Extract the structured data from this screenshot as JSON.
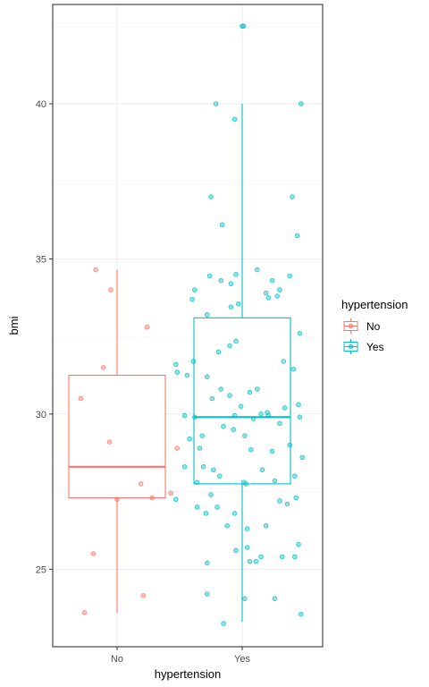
{
  "chart_data": {
    "type": "boxplot",
    "xlabel": "hypertension",
    "ylabel": "bmi",
    "categories": [
      "No",
      "Yes"
    ],
    "ylim": [
      22.5,
      43.2
    ],
    "yticks": [
      25,
      30,
      35,
      40
    ],
    "grid": true,
    "legend": {
      "title": "hypertension",
      "position": "right",
      "entries": [
        "No",
        "Yes"
      ]
    },
    "colors": {
      "No": "#F8766D",
      "Yes": "#00BFC4"
    },
    "series": [
      {
        "name": "No",
        "box": {
          "min": 23.6,
          "q1": 27.3,
          "median": 28.3,
          "q3": 31.25,
          "max": 34.65
        },
        "points": [
          [
            0.83,
            34.65
          ],
          [
            0.95,
            34.0
          ],
          [
            0.89,
            31.5
          ],
          [
            0.71,
            30.5
          ],
          [
            0.94,
            29.1
          ],
          [
            0.81,
            25.5
          ],
          [
            0.74,
            23.6
          ],
          [
            1.24,
            32.8
          ],
          [
            1.48,
            28.9
          ],
          [
            1.19,
            27.75
          ],
          [
            1.28,
            27.3
          ],
          [
            1.43,
            27.45
          ],
          [
            1.0,
            27.25
          ],
          [
            1.21,
            24.15
          ]
        ]
      },
      {
        "name": "Yes",
        "box": {
          "min": 23.3,
          "q1": 27.75,
          "median": 29.9,
          "q3": 33.1,
          "max": 40.0
        },
        "points": [
          [
            2.0,
            42.5
          ],
          [
            2.01,
            42.5
          ],
          [
            1.79,
            40.0
          ],
          [
            2.47,
            40.0
          ],
          [
            1.94,
            39.5
          ],
          [
            1.75,
            37.0
          ],
          [
            2.4,
            37.0
          ],
          [
            1.84,
            36.1
          ],
          [
            2.44,
            35.75
          ],
          [
            2.12,
            34.65
          ],
          [
            1.95,
            34.5
          ],
          [
            1.74,
            34.45
          ],
          [
            1.83,
            34.3
          ],
          [
            1.91,
            34.2
          ],
          [
            2.24,
            34.3
          ],
          [
            2.38,
            34.45
          ],
          [
            2.3,
            34.0
          ],
          [
            1.62,
            34.0
          ],
          [
            1.6,
            33.7
          ],
          [
            2.21,
            33.75
          ],
          [
            2.19,
            33.9
          ],
          [
            2.28,
            33.8
          ],
          [
            1.97,
            33.55
          ],
          [
            1.72,
            33.2
          ],
          [
            1.91,
            33.45
          ],
          [
            2.46,
            32.6
          ],
          [
            1.9,
            32.2
          ],
          [
            1.81,
            32.0
          ],
          [
            1.95,
            32.35
          ],
          [
            2.33,
            31.7
          ],
          [
            2.41,
            31.45
          ],
          [
            1.47,
            31.6
          ],
          [
            1.48,
            31.35
          ],
          [
            1.61,
            31.7
          ],
          [
            1.72,
            31.2
          ],
          [
            1.56,
            31.25
          ],
          [
            1.76,
            30.5
          ],
          [
            1.83,
            30.8
          ],
          [
            1.9,
            30.6
          ],
          [
            1.94,
            29.95
          ],
          [
            1.99,
            30.25
          ],
          [
            2.06,
            30.7
          ],
          [
            2.12,
            30.8
          ],
          [
            2.15,
            30.0
          ],
          [
            2.2,
            30.05
          ],
          [
            2.21,
            29.95
          ],
          [
            2.34,
            30.2
          ],
          [
            2.45,
            30.3
          ],
          [
            1.54,
            29.95
          ],
          [
            1.62,
            29.9
          ],
          [
            1.68,
            29.3
          ],
          [
            1.58,
            29.2
          ],
          [
            1.66,
            28.9
          ],
          [
            1.69,
            28.3
          ],
          [
            1.77,
            28.2
          ],
          [
            1.82,
            28.0
          ],
          [
            1.85,
            29.6
          ],
          [
            1.93,
            29.5
          ],
          [
            2.02,
            29.3
          ],
          [
            2.07,
            28.85
          ],
          [
            2.09,
            29.85
          ],
          [
            2.16,
            28.2
          ],
          [
            2.24,
            28.8
          ],
          [
            2.3,
            29.7
          ],
          [
            2.38,
            29.0
          ],
          [
            2.42,
            28.0
          ],
          [
            2.46,
            29.9
          ],
          [
            2.48,
            28.6
          ],
          [
            1.54,
            28.3
          ],
          [
            1.64,
            27.8
          ],
          [
            1.75,
            27.4
          ],
          [
            2.01,
            27.8
          ],
          [
            2.03,
            27.75
          ],
          [
            2.26,
            27.85
          ],
          [
            2.3,
            27.2
          ],
          [
            2.36,
            27.1
          ],
          [
            1.64,
            27.0
          ],
          [
            1.71,
            26.8
          ],
          [
            1.8,
            27.0
          ],
          [
            1.94,
            26.8
          ],
          [
            2.04,
            26.3
          ],
          [
            1.88,
            26.4
          ],
          [
            2.19,
            26.4
          ],
          [
            1.47,
            27.25
          ],
          [
            2.43,
            27.3
          ],
          [
            1.95,
            25.6
          ],
          [
            2.04,
            25.7
          ],
          [
            2.06,
            25.25
          ],
          [
            2.11,
            25.25
          ],
          [
            2.15,
            25.4
          ],
          [
            2.32,
            25.4
          ],
          [
            2.42,
            25.4
          ],
          [
            2.45,
            25.8
          ],
          [
            1.72,
            25.2
          ],
          [
            1.72,
            24.2
          ],
          [
            2.02,
            24.05
          ],
          [
            2.26,
            24.05
          ],
          [
            1.85,
            23.25
          ],
          [
            2.47,
            23.55
          ]
        ]
      }
    ]
  }
}
